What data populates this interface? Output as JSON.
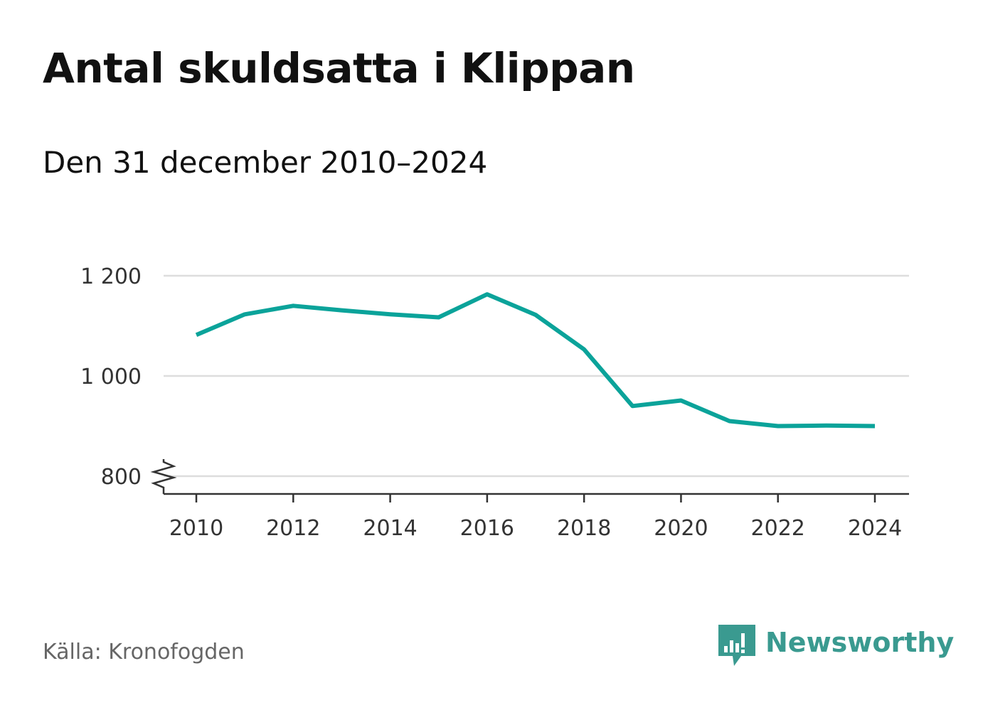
{
  "title": "Antal skuldsatta i Klippan",
  "subtitle": "Den 31 december 2010–2024",
  "source": "Källa: Kronofogden",
  "brand": {
    "name": "Newsworthy",
    "icon": "newsworthy-logo-icon",
    "color": "#3a9a90"
  },
  "colors": {
    "line": "#0ba39a",
    "grid": "#dddddd",
    "axis": "#333333",
    "tick_text": "#333333"
  },
  "chart_data": {
    "type": "line",
    "x": [
      2010,
      2011,
      2012,
      2013,
      2014,
      2015,
      2016,
      2017,
      2018,
      2019,
      2020,
      2021,
      2022,
      2023,
      2024
    ],
    "series": [
      {
        "values": [
          1082,
          1123,
          1140,
          1131,
          1123,
          1117,
          1163,
          1122,
          1053,
          940,
          951,
          910,
          900,
          901,
          900
        ]
      }
    ],
    "xticks": [
      2010,
      2012,
      2014,
      2016,
      2018,
      2020,
      2022,
      2024
    ],
    "xtick_labels": [
      "2010",
      "2012",
      "2014",
      "2016",
      "2018",
      "2020",
      "2022",
      "2024"
    ],
    "yticks": [
      800,
      1000,
      1200
    ],
    "ytick_labels": [
      "800",
      "1 000",
      "1 200"
    ],
    "xlim": [
      2010,
      2024
    ],
    "ylim": [
      800,
      1200
    ],
    "grid": true,
    "axis_break": true,
    "xlabel": "",
    "ylabel": ""
  }
}
